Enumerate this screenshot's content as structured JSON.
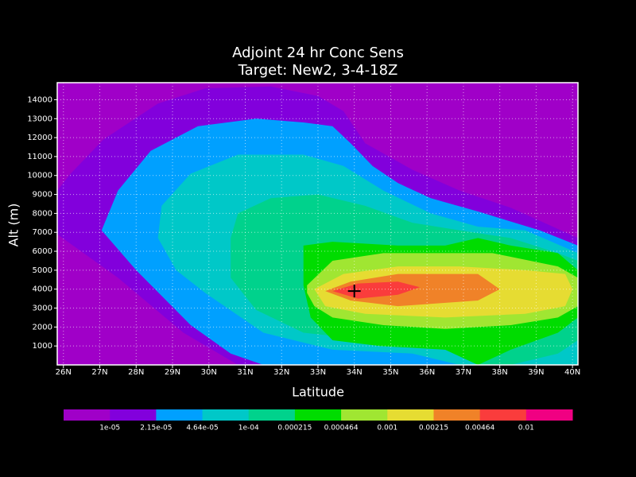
{
  "chart_data": {
    "type": "contour",
    "title": [
      "Adjoint 24 hr Conc Sens",
      "Target: New2, 3-4-18Z"
    ],
    "x_label": "Latitude",
    "y_label": "Alt (m)",
    "xlim": [
      25.83,
      40.15
    ],
    "ylim": [
      0,
      14900
    ],
    "xticks": [
      {
        "value": 26,
        "label": "26N"
      },
      {
        "value": 27,
        "label": "27N"
      },
      {
        "value": 28,
        "label": "28N"
      },
      {
        "value": 29,
        "label": "29N"
      },
      {
        "value": 30,
        "label": "30N"
      },
      {
        "value": 31,
        "label": "31N"
      },
      {
        "value": 32,
        "label": "32N"
      },
      {
        "value": 33,
        "label": "33N"
      },
      {
        "value": 34,
        "label": "34N"
      },
      {
        "value": 35,
        "label": "35N"
      },
      {
        "value": 36,
        "label": "36N"
      },
      {
        "value": 37,
        "label": "37N"
      },
      {
        "value": 38,
        "label": "38N"
      },
      {
        "value": 39,
        "label": "39N"
      },
      {
        "value": 40,
        "label": "40N"
      }
    ],
    "yticks": [
      1000,
      2000,
      3000,
      4000,
      5000,
      6000,
      7000,
      8000,
      9000,
      10000,
      11000,
      12000,
      13000,
      14000
    ],
    "grid": true,
    "background_color": "#a000c8",
    "contours": [
      {
        "color": "#8200dc",
        "points": [
          [
            25.83,
            9200
          ],
          [
            25.83,
            6900
          ],
          [
            27.5,
            4600
          ],
          [
            29.3,
            1700
          ],
          [
            30.8,
            0
          ],
          [
            40.15,
            0
          ],
          [
            40.15,
            6700
          ],
          [
            38.3,
            8300
          ],
          [
            36.9,
            9200
          ],
          [
            35.6,
            10300
          ],
          [
            34.3,
            11700
          ],
          [
            33.7,
            13400
          ],
          [
            33.0,
            14200
          ],
          [
            31.7,
            14700
          ],
          [
            29.9,
            14600
          ],
          [
            28.6,
            13800
          ],
          [
            27.1,
            11900
          ],
          [
            26.2,
            10100
          ]
        ]
      },
      {
        "color": "#00a0ff",
        "points": [
          [
            27.05,
            7100
          ],
          [
            28.0,
            5000
          ],
          [
            29.5,
            2100
          ],
          [
            30.6,
            600
          ],
          [
            31.5,
            0
          ],
          [
            40.15,
            0
          ],
          [
            40.15,
            6300
          ],
          [
            39.1,
            7100
          ],
          [
            37.4,
            8100
          ],
          [
            36.1,
            8800
          ],
          [
            35.2,
            9600
          ],
          [
            34.5,
            10500
          ],
          [
            33.9,
            11700
          ],
          [
            33.4,
            12600
          ],
          [
            32.6,
            12800
          ],
          [
            31.3,
            13000
          ],
          [
            29.7,
            12600
          ],
          [
            28.4,
            11300
          ],
          [
            27.5,
            9200
          ]
        ]
      },
      {
        "color": "#00c8c8",
        "points": [
          [
            28.6,
            6700
          ],
          [
            28.7,
            8400
          ],
          [
            29.5,
            10100
          ],
          [
            30.8,
            11100
          ],
          [
            32.6,
            11100
          ],
          [
            33.7,
            10500
          ],
          [
            34.8,
            9200
          ],
          [
            36.1,
            8000
          ],
          [
            37.4,
            7300
          ],
          [
            38.7,
            7100
          ],
          [
            40.15,
            5900
          ],
          [
            40.15,
            0
          ],
          [
            36.9,
            0
          ],
          [
            35.6,
            600
          ],
          [
            33.4,
            800
          ],
          [
            31.5,
            1700
          ],
          [
            29.9,
            3800
          ],
          [
            29.1,
            5000
          ]
        ]
      },
      {
        "color": "#00d28c",
        "points": [
          [
            30.6,
            6700
          ],
          [
            30.8,
            8000
          ],
          [
            31.7,
            8800
          ],
          [
            33.0,
            9000
          ],
          [
            34.3,
            8400
          ],
          [
            35.6,
            7500
          ],
          [
            36.9,
            7100
          ],
          [
            38.3,
            6700
          ],
          [
            39.6,
            5900
          ],
          [
            40.15,
            5500
          ],
          [
            40.15,
            1300
          ],
          [
            39.6,
            600
          ],
          [
            38.3,
            0
          ],
          [
            37.4,
            0
          ],
          [
            36.5,
            800
          ],
          [
            34.5,
            1300
          ],
          [
            32.6,
            1700
          ],
          [
            31.3,
            2900
          ],
          [
            30.6,
            4600
          ]
        ]
      },
      {
        "color": "#00dc00",
        "points": [
          [
            32.6,
            6300
          ],
          [
            33.4,
            6500
          ],
          [
            35.2,
            6300
          ],
          [
            36.5,
            6300
          ],
          [
            37.4,
            6700
          ],
          [
            38.3,
            6300
          ],
          [
            39.6,
            5900
          ],
          [
            40.15,
            5000
          ],
          [
            40.15,
            2500
          ],
          [
            39.6,
            1700
          ],
          [
            38.3,
            800
          ],
          [
            37.4,
            0
          ],
          [
            36.5,
            800
          ],
          [
            34.7,
            1000
          ],
          [
            33.4,
            1300
          ],
          [
            32.8,
            2500
          ],
          [
            32.6,
            4200
          ]
        ]
      },
      {
        "color": "#a0e632",
        "points": [
          [
            32.7,
            4200
          ],
          [
            33.4,
            5500
          ],
          [
            34.8,
            5900
          ],
          [
            36.5,
            5900
          ],
          [
            37.8,
            5900
          ],
          [
            39.6,
            5200
          ],
          [
            40.15,
            4600
          ],
          [
            40.15,
            3100
          ],
          [
            39.6,
            2500
          ],
          [
            38.3,
            2100
          ],
          [
            36.5,
            1900
          ],
          [
            34.8,
            2100
          ],
          [
            33.4,
            2500
          ],
          [
            32.9,
            3100
          ],
          [
            32.7,
            3800
          ]
        ]
      },
      {
        "color": "#e6dc32",
        "points": [
          [
            32.9,
            4000
          ],
          [
            33.7,
            4800
          ],
          [
            35.2,
            5200
          ],
          [
            36.9,
            5200
          ],
          [
            38.7,
            5000
          ],
          [
            39.8,
            4800
          ],
          [
            40.0,
            4000
          ],
          [
            39.8,
            3100
          ],
          [
            38.7,
            2700
          ],
          [
            36.5,
            2500
          ],
          [
            34.3,
            2700
          ],
          [
            33.2,
            3100
          ]
        ]
      },
      {
        "color": "#f08228",
        "points": [
          [
            33.2,
            3900
          ],
          [
            33.9,
            4400
          ],
          [
            35.2,
            4800
          ],
          [
            37.4,
            4800
          ],
          [
            38.0,
            4000
          ],
          [
            37.4,
            3400
          ],
          [
            35.2,
            3100
          ],
          [
            33.9,
            3400
          ]
        ]
      },
      {
        "color": "#fa3c3c",
        "points": [
          [
            33.4,
            3900
          ],
          [
            34.1,
            4300
          ],
          [
            35.2,
            4400
          ],
          [
            35.8,
            4100
          ],
          [
            35.2,
            3700
          ],
          [
            34.1,
            3500
          ]
        ]
      }
    ],
    "target": [
      34.0,
      3900
    ],
    "colorbar": {
      "colors": [
        "#a000c8",
        "#8200dc",
        "#00a0ff",
        "#00c8c8",
        "#00d28c",
        "#00dc00",
        "#a0e632",
        "#e6dc32",
        "#f08228",
        "#fa3c3c",
        "#f00082"
      ],
      "levels": [
        {
          "value": 1e-05,
          "label": "1e-05"
        },
        {
          "value": 2.15e-05,
          "label": "2.15e-05"
        },
        {
          "value": 4.64e-05,
          "label": "4.64e-05"
        },
        {
          "value": 0.0001,
          "label": "1e-04"
        },
        0.000215,
        0.000464,
        0.001,
        0.00215,
        0.00464,
        0.01
      ]
    }
  }
}
